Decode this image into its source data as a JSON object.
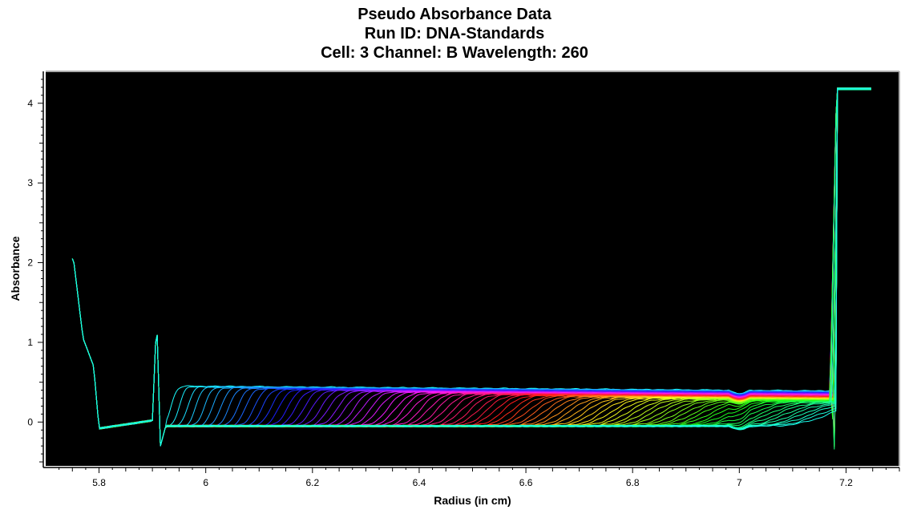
{
  "chart_data": {
    "type": "line",
    "title": [
      "Pseudo Absorbance Data",
      "Run ID: DNA-Standards",
      "Cell: 3  Channel: B  Wavelength: 260"
    ],
    "xlabel": "Radius (in cm)",
    "ylabel": "Absorbance",
    "xlim": [
      5.7,
      7.3
    ],
    "ylim": [
      -0.55,
      4.4
    ],
    "x_ticks": [
      5.8,
      6,
      6.2,
      6.4,
      6.6,
      6.8,
      7,
      7.2
    ],
    "y_ticks": [
      0,
      1,
      2,
      3,
      4
    ],
    "plot_background": "#000000",
    "grid": false,
    "legend": "none",
    "series_count": 80,
    "series_description_values": {
      "meniscus_radius": 5.91,
      "bottom_radius": 7.17,
      "initial_plateau_absorbance": 0.45,
      "final_plateau_absorbance": 0.3,
      "saturated_absorbance": 4.17,
      "baseline_absorbance": -0.05
    },
    "series_sample": [
      {
        "x": [
          5.75,
          5.76,
          5.78,
          5.79,
          5.8,
          5.85,
          5.9,
          5.91,
          5.92,
          5.93,
          5.95,
          6.2,
          6.6,
          7.0,
          7.16,
          7.17,
          7.18,
          7.25
        ],
        "y": [
          2.0,
          1.1,
          0.8,
          -0.05,
          -0.08,
          -0.05,
          0.02,
          1.4,
          -0.3,
          0.45,
          0.45,
          0.4,
          0.36,
          0.33,
          0.45,
          1.5,
          4.17,
          4.17
        ]
      }
    ]
  }
}
